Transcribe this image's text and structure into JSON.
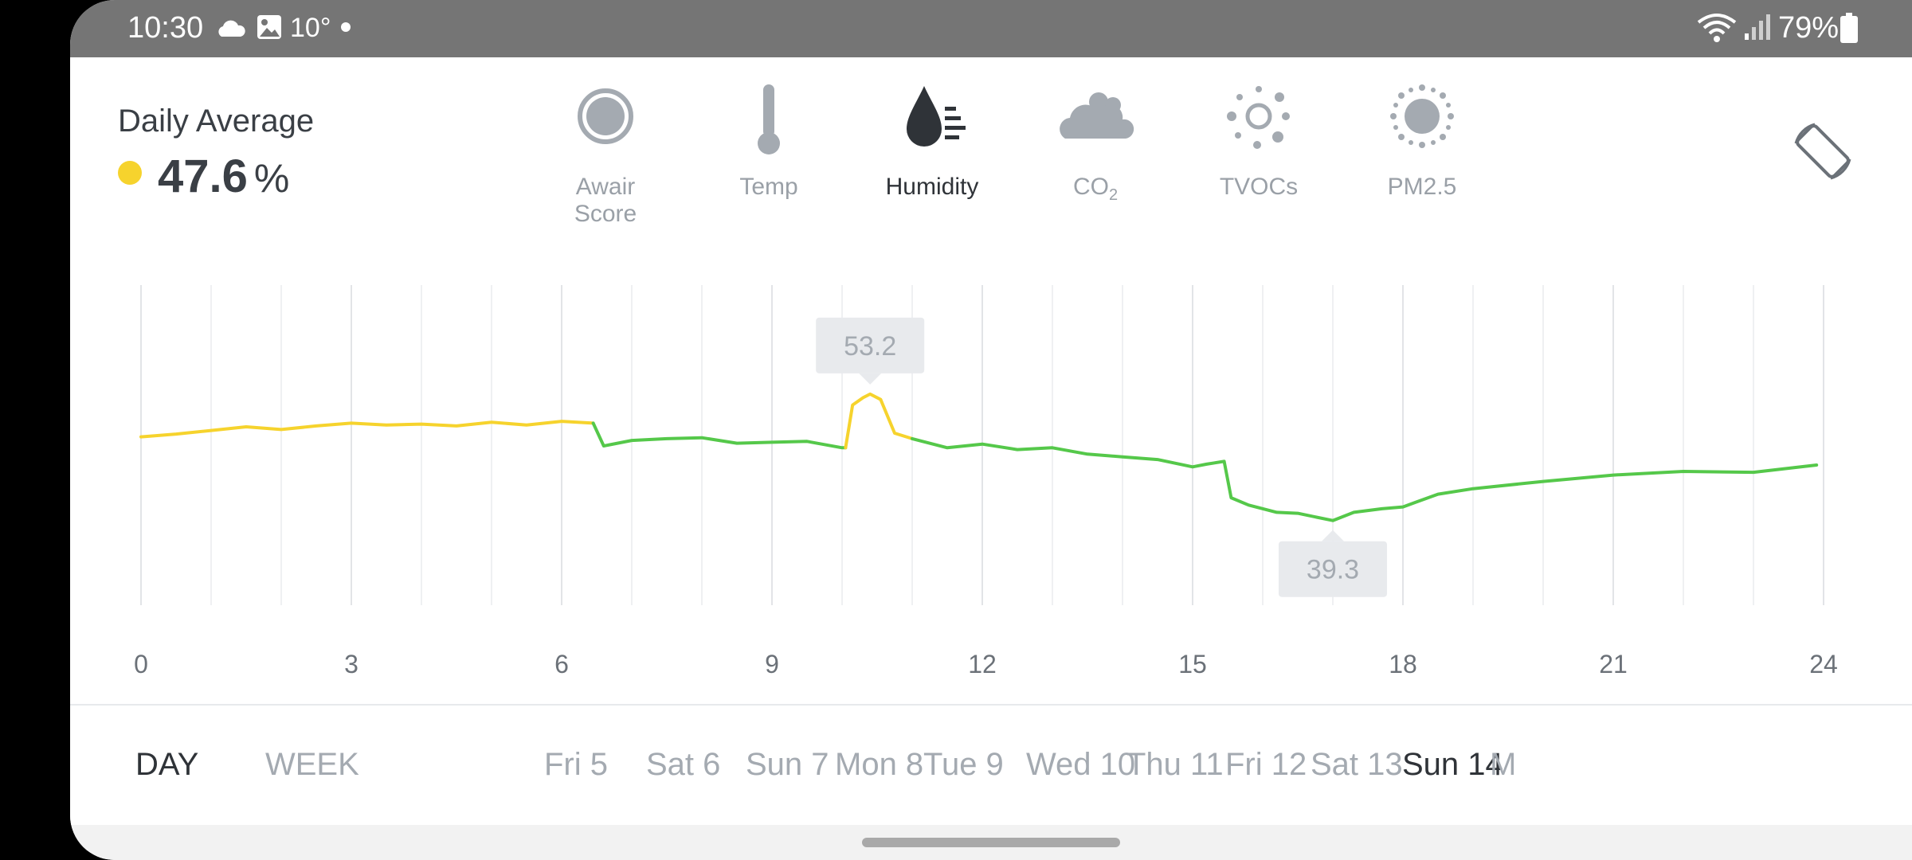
{
  "status_bar": {
    "time": "10:30",
    "temperature": "10°",
    "battery": "79%"
  },
  "summary": {
    "label": "Daily Average",
    "value": "47.6",
    "unit": "%",
    "indicator_color": "#f6d32d"
  },
  "metrics": [
    {
      "label_line1": "Awair",
      "label_line2": "Score",
      "icon": "awair-score-icon",
      "active": false
    },
    {
      "label_line1": "Temp",
      "label_line2": "",
      "icon": "thermometer-icon",
      "active": false
    },
    {
      "label_line1": "Humidity",
      "label_line2": "",
      "icon": "humidity-drop-icon",
      "active": true
    },
    {
      "label_line1": "CO",
      "label_sub": "2",
      "icon": "co2-cloud-icon",
      "active": false
    },
    {
      "label_line1": "TVOCs",
      "label_line2": "",
      "icon": "tvocs-icon",
      "active": false
    },
    {
      "label_line1": "PM2.5",
      "label_line2": "",
      "icon": "pm25-icon",
      "active": false
    }
  ],
  "chart_data": {
    "type": "line",
    "x_ticks": [
      "0",
      "3",
      "6",
      "9",
      "12",
      "15",
      "18",
      "21",
      "24"
    ],
    "xlim": [
      0,
      24
    ],
    "ylim": [
      30,
      65
    ],
    "grid": true,
    "max_label": "53.2",
    "min_label": "39.3",
    "colors": {
      "good": "#55c84a",
      "fair": "#f6d32d"
    },
    "series": [
      {
        "color": "fair",
        "x": [
          0,
          0.5,
          1,
          1.5,
          2,
          2.5,
          3,
          3.5,
          4,
          4.5,
          5,
          5.5,
          6,
          6.45
        ],
        "y": [
          48.5,
          48.8,
          49.2,
          49.6,
          49.3,
          49.7,
          50.0,
          49.8,
          49.9,
          49.7,
          50.1,
          49.8,
          50.2,
          50.0
        ]
      },
      {
        "color": "good",
        "x": [
          6.45,
          6.6,
          7,
          7.5,
          8,
          8.5,
          9,
          9.5,
          10,
          10.05
        ],
        "y": [
          50.0,
          47.5,
          48.1,
          48.3,
          48.4,
          47.8,
          47.9,
          48.0,
          47.3,
          47.3
        ]
      },
      {
        "color": "fair",
        "x": [
          10.05,
          10.15,
          10.3,
          10.4,
          10.55,
          10.75,
          11
        ],
        "y": [
          47.3,
          52.0,
          52.8,
          53.2,
          52.6,
          48.9,
          48.3
        ]
      },
      {
        "color": "good",
        "x": [
          11,
          11.5,
          12,
          12.5,
          13,
          13.5,
          14,
          14.5,
          15,
          15.2,
          15.45,
          15.55,
          15.8,
          16.2,
          16.5,
          17,
          17.3,
          17.7,
          18,
          18.5,
          19,
          20,
          21,
          22,
          23,
          23.9
        ],
        "y": [
          48.3,
          47.3,
          47.7,
          47.1,
          47.3,
          46.6,
          46.3,
          46.0,
          45.2,
          45.5,
          45.8,
          41.8,
          41.0,
          40.2,
          40.1,
          39.3,
          40.2,
          40.6,
          40.8,
          42.2,
          42.8,
          43.6,
          44.3,
          44.7,
          44.6,
          45.4
        ]
      }
    ]
  },
  "nav": {
    "day": "DAY",
    "week": "WEEK",
    "dates": [
      "Fri 5",
      "Sat 6",
      "Sun 7",
      "Mon 8",
      "Tue 9",
      "Wed 10",
      "Thu 11",
      "Fri 12",
      "Sat 13",
      "Sun 14",
      "M"
    ],
    "active_date_index": 9
  }
}
